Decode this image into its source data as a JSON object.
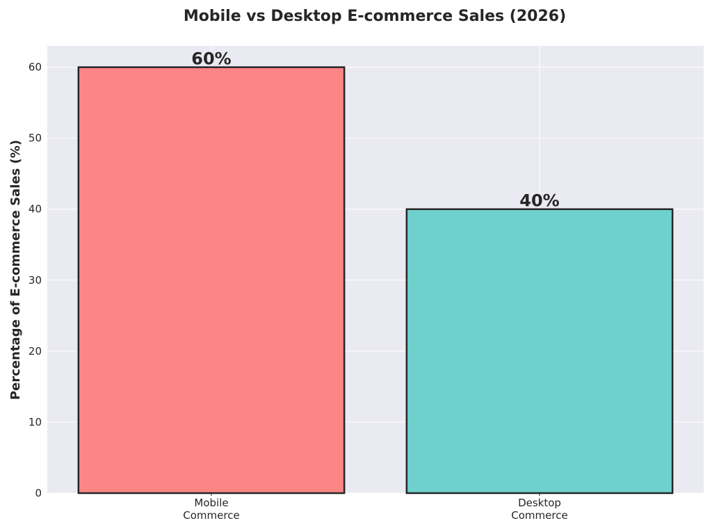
{
  "chart_data": {
    "type": "bar",
    "title": "Mobile vs Desktop E-commerce Sales (2026)",
    "xlabel": "",
    "ylabel": "Percentage of E-commerce Sales (%)",
    "categories": [
      [
        "Mobile",
        "Commerce"
      ],
      [
        "Desktop",
        "Commerce"
      ]
    ],
    "values": [
      60,
      40
    ],
    "data_labels": [
      "60%",
      "40%"
    ],
    "colors": [
      "#fc8585",
      "#6fd1ce"
    ],
    "yticks": [
      0,
      10,
      20,
      30,
      40,
      50,
      60
    ],
    "ytick_labels": [
      "0",
      "10",
      "20",
      "30",
      "40",
      "50",
      "60"
    ],
    "ylim": [
      0,
      63
    ],
    "grid": true,
    "plot_background": "#eaeaf2"
  }
}
